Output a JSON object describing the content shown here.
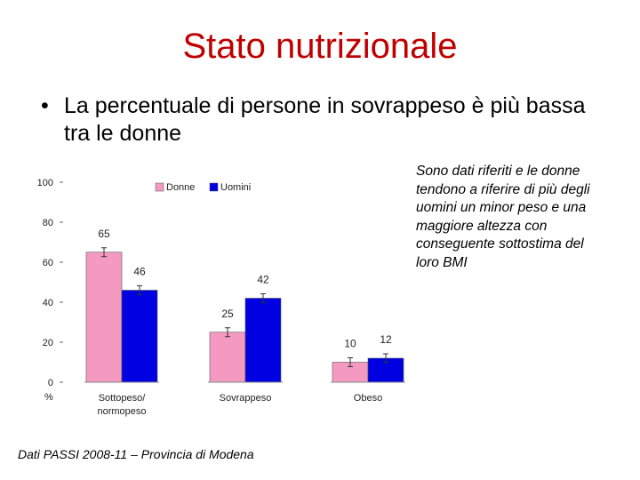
{
  "slide": {
    "title": "Stato nutrizionale",
    "bullet_symbol": "•",
    "bullet_text": "La percentuale di persone in sovrappeso è più bassa tra le donne",
    "note": "Sono dati riferiti e le donne tendono a riferire di più degli uomini un minor peso e una maggiore altezza con conseguente sottostima del loro BMI",
    "source": "Dati PASSI 2008-11 – Provincia di Modena"
  },
  "chart_data": {
    "type": "bar",
    "title": "",
    "xlabel": "",
    "ylabel": "%",
    "ylim": [
      0,
      100
    ],
    "yticks": [
      0,
      20,
      40,
      60,
      80,
      100
    ],
    "grid": false,
    "legend_position": "top",
    "categories": [
      [
        "Sottopeso/",
        "normopeso"
      ],
      [
        "Sovrappeso"
      ],
      [
        "Obeso"
      ]
    ],
    "series": [
      {
        "name": "Donne",
        "values": [
          65,
          25,
          10
        ],
        "color": "#f49ac1"
      },
      {
        "name": "Uomini",
        "values": [
          46,
          42,
          12
        ],
        "color": "#0000e0"
      }
    ],
    "error_bars": true
  }
}
